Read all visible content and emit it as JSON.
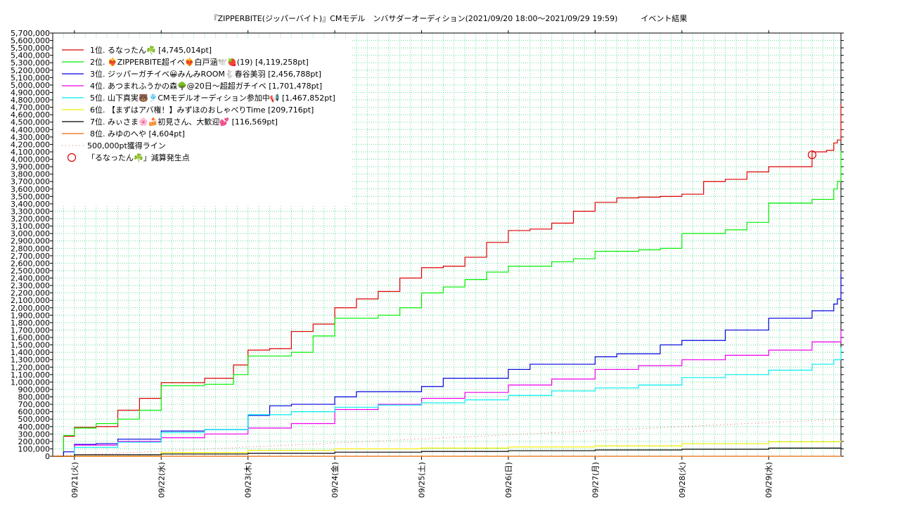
{
  "chart_data": {
    "type": "line",
    "title": "『ZIPPERBITE(ジッパーバイト)』CMモデル　ンバサダーオーディション(2021/09/20 18:00〜2021/09/29 19:59)　　　イベント結果",
    "xlabel": "",
    "ylabel": "",
    "ylim": [
      0,
      5700000
    ],
    "x_range": [
      "2021/09/20 18:00",
      "2021/09/29 19:59"
    ],
    "x_tick_labels": [
      "09/21(火)",
      "09/22(水)",
      "09/23(木)",
      "09/24(金)",
      "09/25(土)",
      "09/26(日)",
      "09/27(月)",
      "09/28(火)",
      "09/29(水)"
    ],
    "y_tick_labels": [
      "0",
      "100,000",
      "200,000",
      "300,000",
      "400,000",
      "500,000",
      "600,000",
      "700,000",
      "800,000",
      "900,000",
      "1,000,000",
      "1,100,000",
      "1,200,000",
      "1,300,000",
      "1,400,000",
      "1,500,000",
      "1,600,000",
      "1,700,000",
      "1,800,000",
      "1,900,000",
      "2,000,000",
      "2,100,000",
      "2,200,000",
      "2,300,000",
      "2,400,000",
      "2,500,000",
      "2,600,000",
      "2,700,000",
      "2,800,000",
      "2,900,000",
      "3,000,000",
      "3,100,000",
      "3,200,000",
      "3,300,000",
      "3,400,000",
      "3,500,000",
      "3,600,000",
      "3,700,000",
      "3,800,000",
      "3,900,000",
      "4,000,000",
      "4,100,000",
      "4,200,000",
      "4,300,000",
      "4,400,000",
      "4,500,000",
      "4,600,000",
      "4,700,000",
      "4,800,000",
      "4,900,000",
      "5,000,000",
      "5,100,000",
      "5,200,000",
      "5,300,000",
      "5,400,000",
      "5,500,000",
      "5,600,000",
      "5,700,000"
    ],
    "grid": true,
    "legend_position": "top-left",
    "series": [
      {
        "name": "1位. るなったん☘️ [4,745,014pt]",
        "color": "#dd0000",
        "x": [
          "2021/09/20 18:00",
          "2021/09/20 21:00",
          "2021/09/21 00:00",
          "2021/09/21 06:00",
          "2021/09/21 12:00",
          "2021/09/21 18:00",
          "2021/09/22 00:00",
          "2021/09/22 12:00",
          "2021/09/22 20:00",
          "2021/09/23 00:00",
          "2021/09/23 06:00",
          "2021/09/23 12:00",
          "2021/09/23 18:00",
          "2021/09/24 00:00",
          "2021/09/24 06:00",
          "2021/09/24 12:00",
          "2021/09/24 18:00",
          "2021/09/25 00:00",
          "2021/09/25 06:00",
          "2021/09/25 12:00",
          "2021/09/25 18:00",
          "2021/09/26 00:00",
          "2021/09/26 06:00",
          "2021/09/26 12:00",
          "2021/09/26 18:00",
          "2021/09/27 00:00",
          "2021/09/27 06:00",
          "2021/09/27 12:00",
          "2021/09/27 18:00",
          "2021/09/28 00:00",
          "2021/09/28 06:00",
          "2021/09/28 12:00",
          "2021/09/28 18:00",
          "2021/09/29 00:00",
          "2021/09/29 12:00",
          "2021/09/29 16:00",
          "2021/09/29 18:00",
          "2021/09/29 19:00",
          "2021/09/29 19:59"
        ],
        "values": [
          0,
          270000,
          390000,
          400000,
          620000,
          780000,
          990000,
          1050000,
          1230000,
          1430000,
          1450000,
          1680000,
          1780000,
          2000000,
          2120000,
          2220000,
          2400000,
          2540000,
          2560000,
          2680000,
          2880000,
          3040000,
          3060000,
          3140000,
          3300000,
          3420000,
          3480000,
          3490000,
          3500000,
          3530000,
          3700000,
          3730000,
          3830000,
          3900000,
          4100000,
          4120000,
          4220000,
          4260000,
          4745014
        ]
      },
      {
        "name": "2位. ❤️‍🔥ZIPPERBITE超イベ❤️‍🔥白戸涵🕊️🍓(19) [4,119,258pt]",
        "color": "#00ee00",
        "x": [
          "2021/09/20 18:00",
          "2021/09/20 21:00",
          "2021/09/21 00:00",
          "2021/09/21 06:00",
          "2021/09/21 12:00",
          "2021/09/21 18:00",
          "2021/09/22 00:00",
          "2021/09/22 12:00",
          "2021/09/22 20:00",
          "2021/09/23 00:00",
          "2021/09/23 12:00",
          "2021/09/23 18:00",
          "2021/09/24 00:00",
          "2021/09/24 12:00",
          "2021/09/24 18:00",
          "2021/09/25 00:00",
          "2021/09/25 06:00",
          "2021/09/25 12:00",
          "2021/09/25 18:00",
          "2021/09/26 00:00",
          "2021/09/26 12:00",
          "2021/09/26 18:00",
          "2021/09/27 00:00",
          "2021/09/27 12:00",
          "2021/09/27 18:00",
          "2021/09/28 00:00",
          "2021/09/28 12:00",
          "2021/09/28 18:00",
          "2021/09/29 00:00",
          "2021/09/29 12:00",
          "2021/09/29 18:00",
          "2021/09/29 19:00",
          "2021/09/29 19:59"
        ],
        "values": [
          0,
          280000,
          380000,
          440000,
          500000,
          620000,
          950000,
          970000,
          1100000,
          1350000,
          1400000,
          1620000,
          1860000,
          1900000,
          2000000,
          2200000,
          2280000,
          2380000,
          2480000,
          2560000,
          2620000,
          2660000,
          2760000,
          2780000,
          2800000,
          3000000,
          3050000,
          3150000,
          3410000,
          3460000,
          3600000,
          3700000,
          4119258
        ]
      },
      {
        "name": "3位. ジッパーガチイベ😀みんみROOM🐇春谷美羽 [2,456,788pt]",
        "color": "#0000dd",
        "x": [
          "2021/09/20 18:00",
          "2021/09/20 21:00",
          "2021/09/21 00:00",
          "2021/09/21 06:00",
          "2021/09/21 12:00",
          "2021/09/22 00:00",
          "2021/09/22 12:00",
          "2021/09/23 00:00",
          "2021/09/23 06:00",
          "2021/09/23 12:00",
          "2021/09/24 00:00",
          "2021/09/24 06:00",
          "2021/09/25 00:00",
          "2021/09/25 06:00",
          "2021/09/26 00:00",
          "2021/09/26 06:00",
          "2021/09/27 00:00",
          "2021/09/27 06:00",
          "2021/09/27 18:00",
          "2021/09/28 00:00",
          "2021/09/28 12:00",
          "2021/09/29 00:00",
          "2021/09/29 12:00",
          "2021/09/29 18:00",
          "2021/09/29 19:00",
          "2021/09/29 19:59"
        ],
        "values": [
          0,
          60000,
          160000,
          170000,
          230000,
          340000,
          360000,
          550000,
          680000,
          700000,
          800000,
          870000,
          940000,
          1050000,
          1170000,
          1240000,
          1340000,
          1380000,
          1500000,
          1560000,
          1700000,
          1860000,
          1960000,
          2050000,
          2120000,
          2456788
        ]
      },
      {
        "name": "4位. あつまれふうかの森🌳@20日〜超超ガチイベ [1,701,478pt]",
        "color": "#ee00ee",
        "x": [
          "2021/09/20 18:00",
          "2021/09/21 00:00",
          "2021/09/21 12:00",
          "2021/09/22 00:00",
          "2021/09/22 12:00",
          "2021/09/23 00:00",
          "2021/09/23 12:00",
          "2021/09/24 00:00",
          "2021/09/24 12:00",
          "2021/09/25 00:00",
          "2021/09/25 12:00",
          "2021/09/26 00:00",
          "2021/09/26 12:00",
          "2021/09/27 00:00",
          "2021/09/27 12:00",
          "2021/09/28 00:00",
          "2021/09/28 12:00",
          "2021/09/29 00:00",
          "2021/09/29 12:00",
          "2021/09/29 19:59"
        ],
        "values": [
          0,
          150000,
          200000,
          250000,
          300000,
          380000,
          440000,
          630000,
          700000,
          780000,
          860000,
          960000,
          1040000,
          1170000,
          1220000,
          1300000,
          1360000,
          1430000,
          1540000,
          1701478
        ]
      },
      {
        "name": "5位. 山下真実🐻🎐CMモデルオーディション参加中📢 [1,467,852pt]",
        "color": "#00eeee",
        "x": [
          "2021/09/20 18:00",
          "2021/09/21 00:00",
          "2021/09/21 12:00",
          "2021/09/22 00:00",
          "2021/09/22 12:00",
          "2021/09/23 00:00",
          "2021/09/23 12:00",
          "2021/09/24 00:00",
          "2021/09/24 12:00",
          "2021/09/25 00:00",
          "2021/09/25 12:00",
          "2021/09/26 00:00",
          "2021/09/26 12:00",
          "2021/09/27 00:00",
          "2021/09/27 12:00",
          "2021/09/28 00:00",
          "2021/09/28 12:00",
          "2021/09/29 00:00",
          "2021/09/29 12:00",
          "2021/09/29 18:00",
          "2021/09/29 19:59"
        ],
        "values": [
          0,
          120000,
          190000,
          320000,
          360000,
          560000,
          600000,
          660000,
          690000,
          720000,
          760000,
          820000,
          880000,
          920000,
          960000,
          1060000,
          1100000,
          1160000,
          1240000,
          1300000,
          1467852
        ]
      },
      {
        "name": "6位. 【まずはアバ権！】みずほのおしゃべりTime [209,716pt]",
        "color": "#eeee00",
        "x": [
          "2021/09/20 18:00",
          "2021/09/22 00:00",
          "2021/09/23 00:00",
          "2021/09/24 00:00",
          "2021/09/25 00:00",
          "2021/09/26 00:00",
          "2021/09/27 00:00",
          "2021/09/28 00:00",
          "2021/09/29 00:00",
          "2021/09/29 19:59"
        ],
        "values": [
          0,
          50000,
          80000,
          100000,
          110000,
          125000,
          140000,
          170000,
          195000,
          209716
        ]
      },
      {
        "name": "7位. みぃさま🌸🍰初見さん、大歓迎💕 [116,569pt]",
        "color": "#000000",
        "x": [
          "2021/09/20 18:00",
          "2021/09/21 00:00",
          "2021/09/22 00:00",
          "2021/09/23 00:00",
          "2021/09/24 00:00",
          "2021/09/25 00:00",
          "2021/09/26 00:00",
          "2021/09/27 00:00",
          "2021/09/28 00:00",
          "2021/09/29 00:00",
          "2021/09/29 19:59"
        ],
        "values": [
          0,
          20000,
          30000,
          40000,
          55000,
          65000,
          75000,
          85000,
          95000,
          110000,
          116569
        ]
      },
      {
        "name": "8位. みゆのへや [4,604pt]",
        "color": "#ee6600",
        "x": [
          "2021/09/20 18:00",
          "2021/09/29 19:59"
        ],
        "values": [
          0,
          4604
        ]
      }
    ],
    "reference_line": {
      "name": "500,000pt獲得ライン",
      "color": "#ee6666",
      "x": [
        "2021/09/20 18:00",
        "2021/09/29 19:59"
      ],
      "values": [
        0,
        500000
      ]
    },
    "marker": {
      "name": "「るなったん☘️」減算発生点",
      "color": "#dd0000",
      "x": "2021/09/29 12:00",
      "value": 4060000
    }
  }
}
